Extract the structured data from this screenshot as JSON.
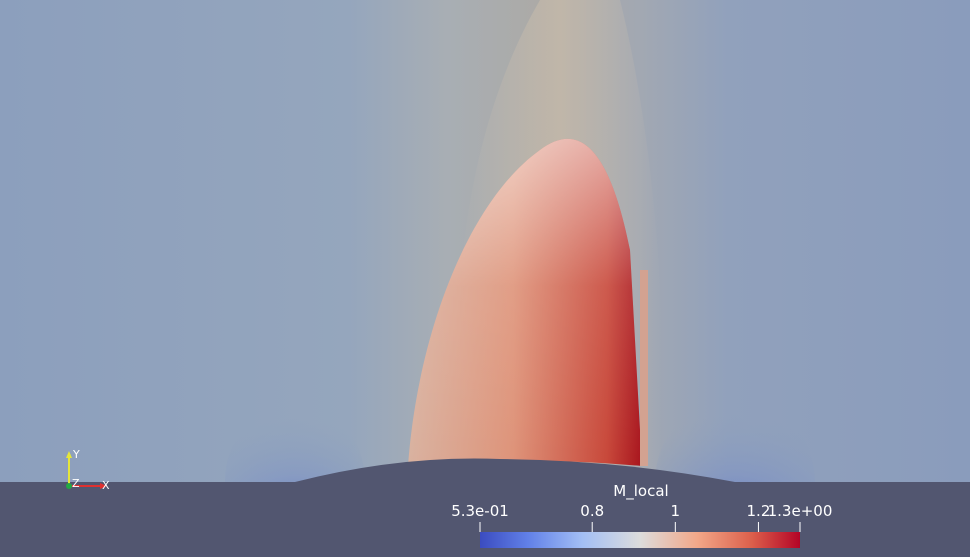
{
  "scalar_bar": {
    "title": "M_local",
    "ticks": [
      {
        "label": "5.3e-01",
        "value": 0.53
      },
      {
        "label": "0.8",
        "value": 0.8
      },
      {
        "label": "1",
        "value": 1.0
      },
      {
        "label": "1.2",
        "value": 1.2
      },
      {
        "label": "1.3e+00",
        "value": 1.3
      }
    ],
    "range": [
      0.53,
      1.3
    ],
    "colormap": [
      "#3b4cc0",
      "#dddddd",
      "#b40426"
    ]
  },
  "axes": {
    "y_label": "Y",
    "z_label": "Z",
    "x_label": "X",
    "colors": {
      "x": "#e03030",
      "y": "#e6e63a",
      "z": "#22aa44"
    }
  },
  "colors": {
    "background": "#8a9fbd",
    "geometry": "#525670"
  }
}
